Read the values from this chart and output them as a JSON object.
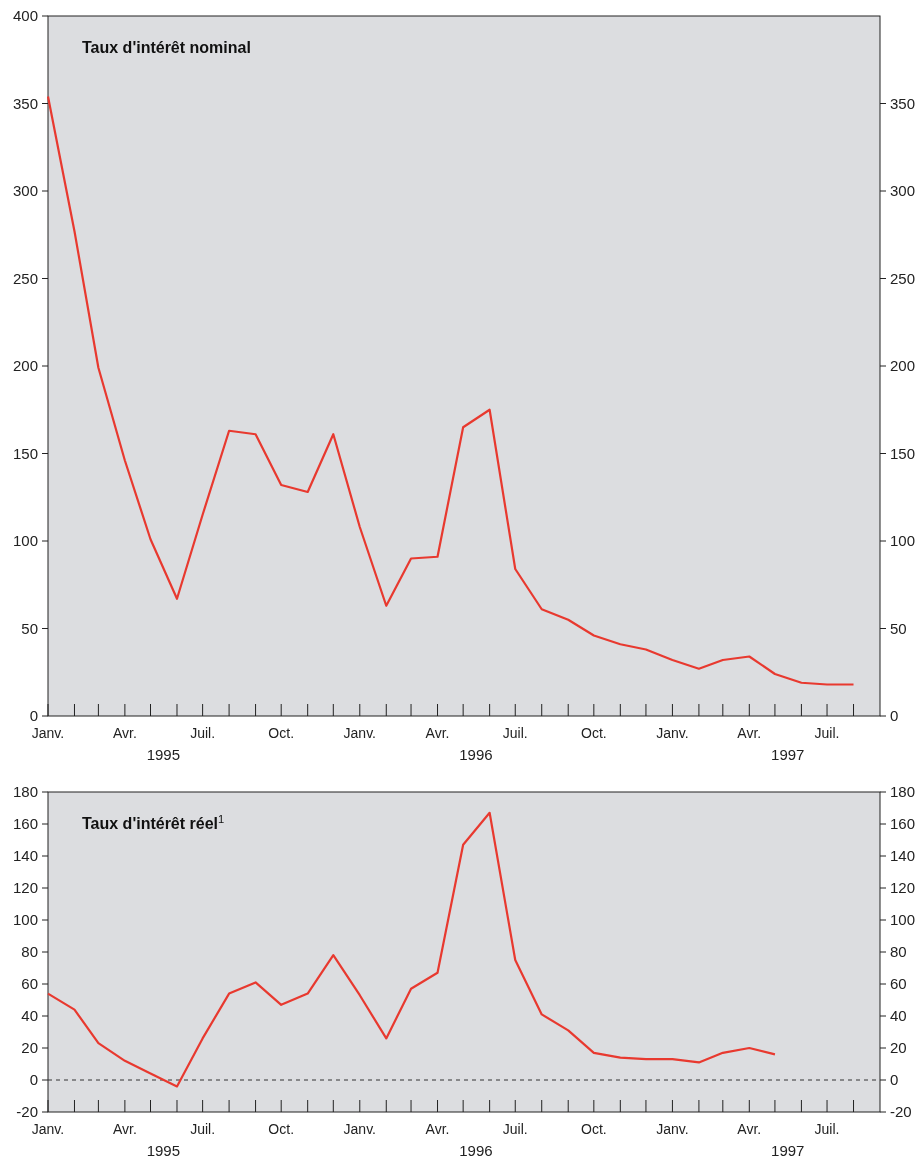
{
  "chart_data": [
    {
      "type": "line",
      "title": "Taux d'intérêt nominal",
      "x": [
        "1995-01",
        "1995-02",
        "1995-03",
        "1995-04",
        "1995-05",
        "1995-06",
        "1995-07",
        "1995-08",
        "1995-09",
        "1995-10",
        "1995-11",
        "1995-12",
        "1996-01",
        "1996-02",
        "1996-03",
        "1996-04",
        "1996-05",
        "1996-06",
        "1996-07",
        "1996-08",
        "1996-09",
        "1996-10",
        "1996-11",
        "1996-12",
        "1997-01",
        "1997-02",
        "1997-03",
        "1997-04",
        "1997-05",
        "1997-06",
        "1997-07",
        "1997-08"
      ],
      "series": [
        {
          "color": "#e8392f",
          "values": [
            354,
            277,
            199,
            146,
            101,
            67,
            115,
            163,
            161,
            132,
            128,
            161,
            108,
            63,
            90,
            91,
            165,
            175,
            84,
            61,
            55,
            46,
            41,
            38,
            32,
            27,
            32,
            34,
            24,
            19,
            18,
            18
          ]
        }
      ],
      "xlim": [
        "1995-01",
        "1997-09"
      ],
      "xticks": [
        {
          "value": "1995-01",
          "label": "Janv."
        },
        {
          "value": "1995-02",
          "label": null
        },
        {
          "value": "1995-03",
          "label": null
        },
        {
          "value": "1995-04",
          "label": "Avr."
        },
        {
          "value": "1995-05",
          "label": null
        },
        {
          "value": "1995-06",
          "label": null
        },
        {
          "value": "1995-07",
          "label": "Juil."
        },
        {
          "value": "1995-08",
          "label": null
        },
        {
          "value": "1995-09",
          "label": null
        },
        {
          "value": "1995-10",
          "label": "Oct."
        },
        {
          "value": "1995-11",
          "label": null
        },
        {
          "value": "1995-12",
          "label": null
        },
        {
          "value": "1996-01",
          "label": "Janv."
        },
        {
          "value": "1996-02",
          "label": null
        },
        {
          "value": "1996-03",
          "label": null
        },
        {
          "value": "1996-04",
          "label": "Avr."
        },
        {
          "value": "1996-05",
          "label": null
        },
        {
          "value": "1996-06",
          "label": null
        },
        {
          "value": "1996-07",
          "label": "Juil."
        },
        {
          "value": "1996-08",
          "label": null
        },
        {
          "value": "1996-09",
          "label": null
        },
        {
          "value": "1996-10",
          "label": "Oct."
        },
        {
          "value": "1996-11",
          "label": null
        },
        {
          "value": "1996-12",
          "label": null
        },
        {
          "value": "1997-01",
          "label": "Janv."
        },
        {
          "value": "1997-02",
          "label": null
        },
        {
          "value": "1997-03",
          "label": null
        },
        {
          "value": "1997-04",
          "label": "Avr."
        },
        {
          "value": "1997-05",
          "label": null
        },
        {
          "value": "1997-06",
          "label": null
        },
        {
          "value": "1997-07",
          "label": "Juil."
        },
        {
          "value": "1997-08",
          "label": null
        }
      ],
      "ylim": [
        0,
        400
      ],
      "yticks": [
        0,
        50,
        100,
        150,
        200,
        250,
        300,
        350,
        400
      ],
      "y2lim": [
        0,
        400
      ],
      "y2ticks": [
        0,
        50,
        100,
        150,
        200,
        250,
        300,
        350
      ],
      "annotations": [
        "1995",
        "1996",
        "1997"
      ],
      "grid": false
    },
    {
      "type": "line",
      "title": "Taux d'intérêt réel$^{1}$",
      "x": [
        "1995-01",
        "1995-02",
        "1995-03",
        "1995-04",
        "1995-05",
        "1995-06",
        "1995-07",
        "1995-08",
        "1995-09",
        "1995-10",
        "1995-11",
        "1995-12",
        "1996-01",
        "1996-02",
        "1996-03",
        "1996-04",
        "1996-05",
        "1996-06",
        "1996-07",
        "1996-08",
        "1996-09",
        "1996-10",
        "1996-11",
        "1996-12",
        "1997-01",
        "1997-02",
        "1997-03",
        "1997-04",
        "1997-05"
      ],
      "series": [
        {
          "color": "#e8392f",
          "values": [
            54,
            44,
            23,
            12,
            4,
            -4,
            26,
            54,
            61,
            47,
            54,
            78,
            53,
            26,
            57,
            67,
            147,
            167,
            75,
            41,
            31,
            17,
            14,
            13,
            13,
            11,
            17,
            20,
            16
          ]
        }
      ],
      "xlim": [
        "1995-01",
        "1997-09"
      ],
      "xticks": [
        {
          "value": "1995-01",
          "label": "Janv."
        },
        {
          "value": "1995-02",
          "label": null
        },
        {
          "value": "1995-03",
          "label": null
        },
        {
          "value": "1995-04",
          "label": "Avr."
        },
        {
          "value": "1995-05",
          "label": null
        },
        {
          "value": "1995-06",
          "label": null
        },
        {
          "value": "1995-07",
          "label": "Juil."
        },
        {
          "value": "1995-08",
          "label": null
        },
        {
          "value": "1995-09",
          "label": null
        },
        {
          "value": "1995-10",
          "label": "Oct."
        },
        {
          "value": "1995-11",
          "label": null
        },
        {
          "value": "1995-12",
          "label": null
        },
        {
          "value": "1996-01",
          "label": "Janv."
        },
        {
          "value": "1996-02",
          "label": null
        },
        {
          "value": "1996-03",
          "label": null
        },
        {
          "value": "1996-04",
          "label": "Avr."
        },
        {
          "value": "1996-05",
          "label": null
        },
        {
          "value": "1996-06",
          "label": null
        },
        {
          "value": "1996-07",
          "label": "Juil."
        },
        {
          "value": "1996-08",
          "label": null
        },
        {
          "value": "1996-09",
          "label": null
        },
        {
          "value": "1996-10",
          "label": "Oct."
        },
        {
          "value": "1996-11",
          "label": null
        },
        {
          "value": "1996-12",
          "label": null
        },
        {
          "value": "1997-01",
          "label": "Janv."
        },
        {
          "value": "1997-02",
          "label": null
        },
        {
          "value": "1997-03",
          "label": null
        },
        {
          "value": "1997-04",
          "label": "Avr."
        },
        {
          "value": "1997-05",
          "label": null
        },
        {
          "value": "1997-06",
          "label": null
        },
        {
          "value": "1997-07",
          "label": "Juil."
        },
        {
          "value": "1997-08",
          "label": null
        }
      ],
      "ylim": [
        -20,
        180
      ],
      "yticks": [
        -20,
        0,
        20,
        40,
        60,
        80,
        100,
        120,
        140,
        160,
        180
      ],
      "y2lim": [
        -20,
        180
      ],
      "y2ticks": [
        -20,
        0,
        20,
        40,
        60,
        80,
        100,
        120,
        140,
        160,
        180
      ],
      "ref_lines": [
        {
          "axis": "y",
          "value": 0,
          "color": "#333333",
          "line_style": "dashed"
        }
      ],
      "annotations": [
        "1995",
        "1996",
        "1997"
      ],
      "grid": false
    }
  ]
}
